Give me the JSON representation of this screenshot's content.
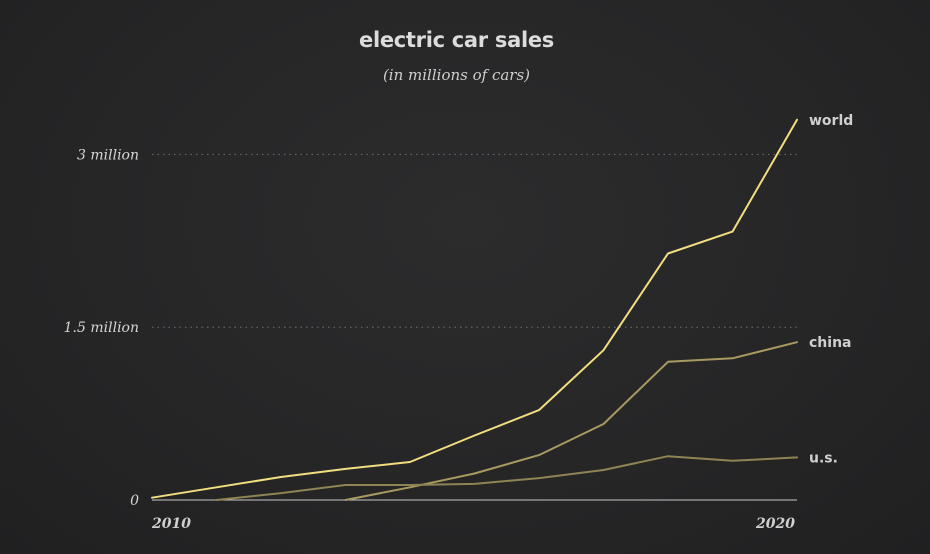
{
  "chart_data": {
    "type": "line",
    "title": "electric car sales",
    "subtitle": "(in millions of cars)",
    "x": [
      2010,
      2011,
      2012,
      2013,
      2014,
      2015,
      2016,
      2017,
      2018,
      2019,
      2020
    ],
    "x_tick_labels": [
      "2010",
      "2020"
    ],
    "y_tick_labels": [
      {
        "value": 0,
        "label": "0"
      },
      {
        "value": 1.5,
        "label": "1.5 million"
      },
      {
        "value": 3.0,
        "label": "3 million"
      }
    ],
    "ylim": [
      0,
      3.3
    ],
    "grid": "dotted horizontal lines at 1.5 million and 3 million",
    "series": [
      {
        "name": "world",
        "color": "#f2dd80",
        "values": [
          0.02,
          0.11,
          0.2,
          0.27,
          0.33,
          0.56,
          0.78,
          1.3,
          2.14,
          2.33,
          3.3
        ]
      },
      {
        "name": "china",
        "color": "#a89a60",
        "values": [
          null,
          null,
          null,
          0.0,
          0.11,
          0.23,
          0.39,
          0.66,
          1.2,
          1.23,
          1.37
        ]
      },
      {
        "name": "u.s.",
        "color": "#8f8454",
        "values": [
          null,
          0.0,
          0.06,
          0.13,
          0.13,
          0.14,
          0.19,
          0.26,
          0.38,
          0.34,
          0.37
        ]
      }
    ]
  }
}
